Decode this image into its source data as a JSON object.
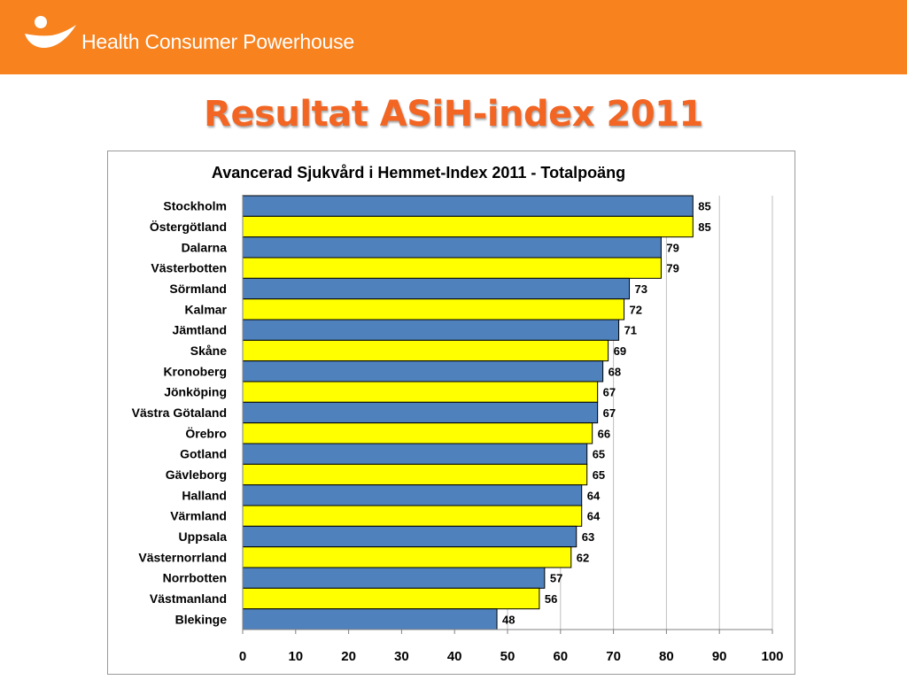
{
  "header": {
    "brand_name": "Health Consumer Powerhouse",
    "background_color": "#f7821e",
    "logo_icon": "person-embrace-icon"
  },
  "slide": {
    "title": "Resultat ASiH-index 2011",
    "title_color": "#f26522"
  },
  "chart_data": {
    "type": "bar",
    "orientation": "horizontal",
    "title": "Avancerad Sjukvård i Hemmet-Index 2011 - Totalpoäng",
    "xlabel": "",
    "ylabel": "",
    "xlim": [
      0,
      100
    ],
    "x_ticks": [
      0,
      10,
      20,
      30,
      40,
      50,
      60,
      70,
      80,
      90,
      100
    ],
    "grid": "vertical",
    "legend": "none",
    "colors": [
      "#4f81bd",
      "#ffff00"
    ],
    "categories": [
      "Stockholm",
      "Östergötland",
      "Dalarna",
      "Västerbotten",
      "Sörmland",
      "Kalmar",
      "Jämtland",
      "Skåne",
      "Kronoberg",
      "Jönköping",
      "Västra Götaland",
      "Örebro",
      "Gotland",
      "Gävleborg",
      "Halland",
      "Värmland",
      "Uppsala",
      "Västernorrland",
      "Norrbotten",
      "Västmanland",
      "Blekinge"
    ],
    "values": [
      85,
      85,
      79,
      79,
      73,
      72,
      71,
      69,
      68,
      67,
      67,
      66,
      65,
      65,
      64,
      64,
      63,
      62,
      57,
      56,
      48
    ]
  }
}
